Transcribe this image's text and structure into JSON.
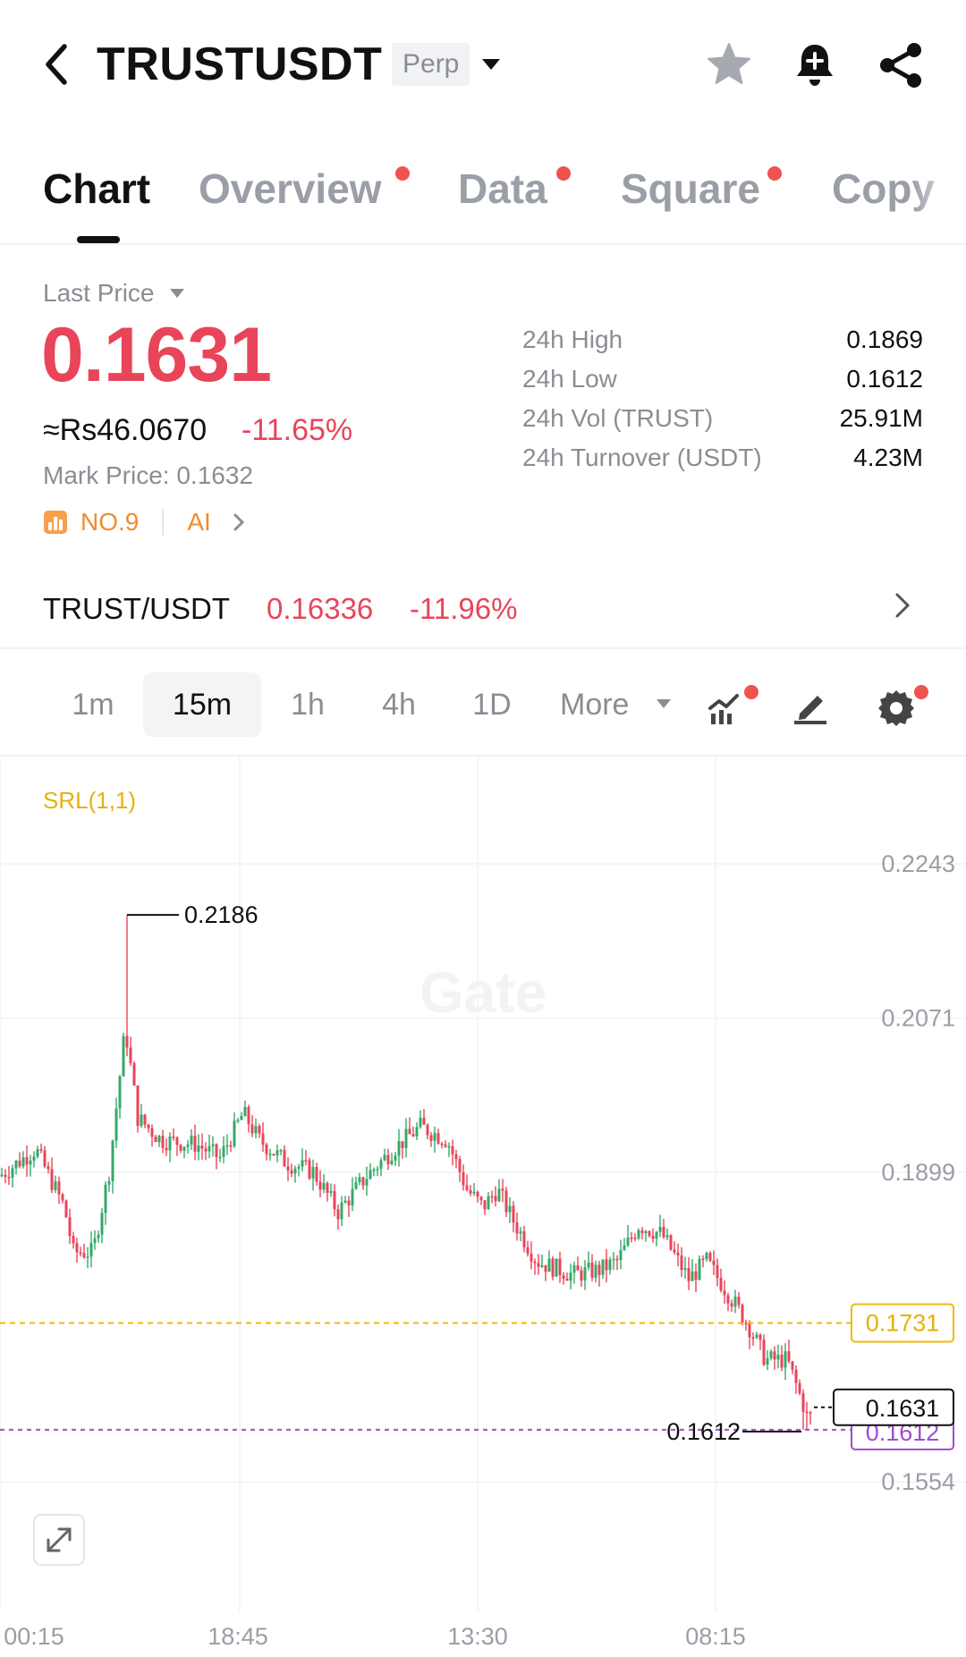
{
  "header": {
    "title": "TRUSTUSDT",
    "badge": "Perp"
  },
  "tabs": [
    {
      "label": "Chart",
      "active": true
    },
    {
      "label": "Overview",
      "dot": true
    },
    {
      "label": "Data",
      "dot": true
    },
    {
      "label": "Square",
      "dot": true
    },
    {
      "label": "Copy"
    }
  ],
  "price_block": {
    "label": "Last Price",
    "price": "0.1631",
    "fiat": "≈Rs46.0670",
    "change": "-11.65%",
    "mark_label": "Mark Price:",
    "mark_value": "0.1632",
    "rank": "NO.9",
    "ai": "AI"
  },
  "stats": [
    {
      "label": "24h High",
      "value": "0.1869"
    },
    {
      "label": "24h Low",
      "value": "0.1612"
    },
    {
      "label": "24h Vol (TRUST)",
      "value": "25.91M"
    },
    {
      "label": "24h Turnover (USDT)",
      "value": "4.23M"
    }
  ],
  "spot": {
    "pair": "TRUST/USDT",
    "price": "0.16336",
    "change": "-11.96%"
  },
  "intervals": [
    "1m",
    "15m",
    "1h",
    "4h",
    "1D",
    "More"
  ],
  "active_interval": "15m",
  "colors": {
    "up": "#36a96a",
    "down": "#e8455a",
    "accent_yellow": "#f0b90b",
    "purple": "#a24bd1"
  },
  "chart": {
    "indicator": "SRL(1,1)",
    "watermark": "Gate",
    "y_ticks": [
      "0.2243",
      "0.2071",
      "0.1899",
      "0.1554"
    ],
    "x_ticks": [
      "00:15",
      "18:45",
      "13:30",
      "08:15"
    ],
    "high_label": "0.2186",
    "low_label": "0.1612",
    "yellow_line_label": "0.1731",
    "current_label": "0.1631",
    "purple_label": "0.1612"
  },
  "chart_data": {
    "type": "candlestick",
    "interval": "15m",
    "y_range": [
      0.1554,
      0.2243
    ],
    "x_ticks": [
      "00:15",
      "18:45",
      "13:30",
      "08:15"
    ],
    "key_points": [
      {
        "time": "00:15",
        "price": 0.189
      },
      {
        "label": "high",
        "price": 0.2186
      },
      {
        "time": "18:45",
        "price": 0.193
      },
      {
        "time": "13:30",
        "price": 0.187
      },
      {
        "time": "08:15",
        "price": 0.175
      },
      {
        "label": "low",
        "price": 0.1612
      },
      {
        "label": "last",
        "price": 0.1631
      }
    ],
    "reference_lines": [
      {
        "price": 0.1731,
        "color": "yellow"
      },
      {
        "price": 0.1612,
        "color": "purple"
      }
    ]
  }
}
